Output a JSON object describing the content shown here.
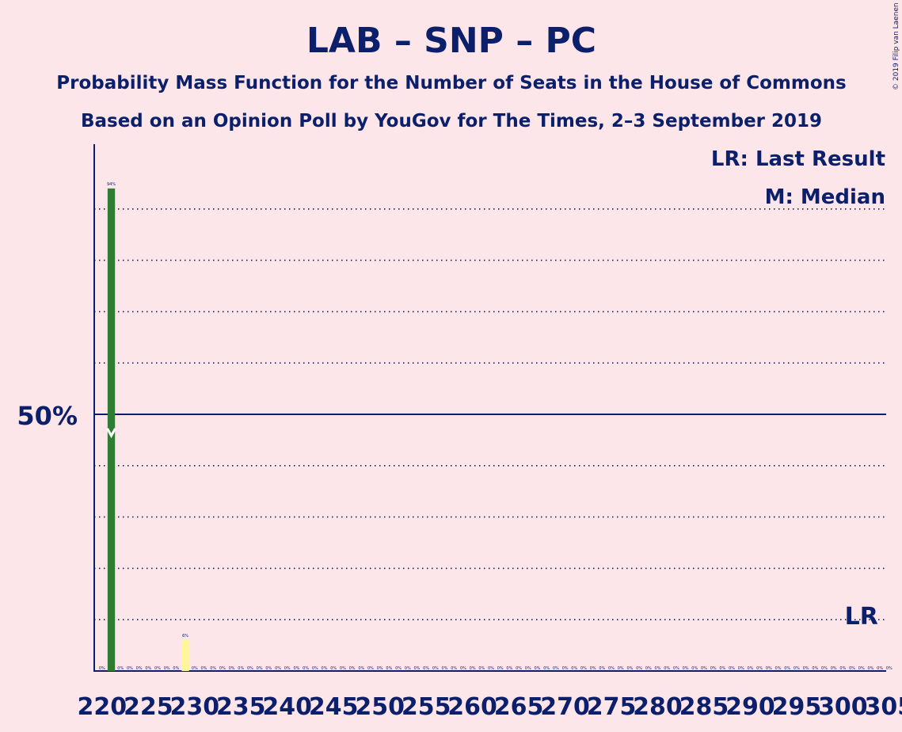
{
  "header": {
    "title": "LAB – SNP – PC",
    "subtitle_1": "Probability Mass Function for the Number of Seats in the House of Commons",
    "subtitle_2": "Based on an Opinion Poll by YouGov for The Times, 2–3 September 2019",
    "copyright": "© 2019 Filip van Laenen"
  },
  "legend": {
    "last_result": "LR: Last Result",
    "median": "M: Median",
    "placement": "top-right"
  },
  "colors": {
    "background": "#fde6ea",
    "text": "#0c1f6b",
    "bar_main": "#2e7d32",
    "bar_highlight": "#fff59d",
    "grid": "#0c1f6b"
  },
  "chart_data": {
    "type": "bar",
    "x_range": [
      220,
      305
    ],
    "x_tick_labels": [
      "220",
      "225",
      "230",
      "235",
      "240",
      "245",
      "250",
      "255",
      "260",
      "265",
      "270",
      "275",
      "280",
      "285",
      "290",
      "295",
      "300",
      "305"
    ],
    "y_tick_label": "50%",
    "ylim": [
      0,
      1
    ],
    "grid": "dotted",
    "bars": [
      {
        "seats": 221,
        "probability": 0.94,
        "label": "94%",
        "color": "#2e7d32"
      },
      {
        "seats": 229,
        "probability": 0.06,
        "label": "6%",
        "color": "#fff59d"
      }
    ],
    "zero_label": "0%",
    "median": {
      "seats": 221,
      "label": "M"
    },
    "last_result": {
      "seats": 302,
      "label": "LR"
    }
  }
}
